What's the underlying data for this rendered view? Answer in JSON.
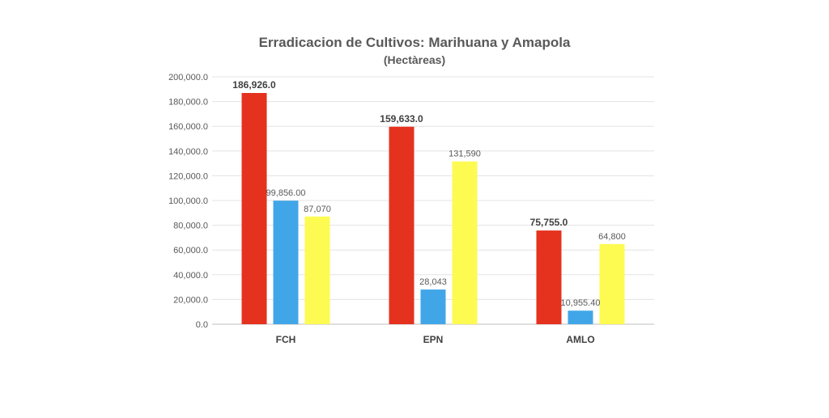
{
  "chart_data": {
    "type": "bar",
    "title": "Erradicacion de Cultivos: Marihuana y Amapola",
    "subtitle": "(Hectàreas)",
    "categories": [
      "FCH",
      "EPN",
      "AMLO"
    ],
    "ylim": [
      0,
      200000
    ],
    "ytick_step": 20000,
    "ytick_labels": [
      "0.0",
      "20,000.0",
      "40,000.0",
      "60,000.0",
      "80,000.0",
      "100,000.0",
      "120,000.0",
      "140,000.0",
      "160,000.0",
      "180,000.0",
      "200,000.0"
    ],
    "grid": true,
    "legend": "none",
    "series": [
      {
        "name": "Series 1",
        "color": "#e5321f",
        "values": [
          186926.0,
          159633.0,
          75755.0
        ],
        "labels": [
          "186,926.0",
          "159,633.0",
          "75,755.0"
        ],
        "label_bold": true
      },
      {
        "name": "Series 2",
        "color": "#41a6e8",
        "values": [
          99856.0,
          28043,
          10955.4
        ],
        "labels": [
          "99,856.00",
          "28,043",
          "10,955.40"
        ],
        "label_bold": false
      },
      {
        "name": "Series 3",
        "color": "#fdfa52",
        "values": [
          87070,
          131590,
          64800
        ],
        "labels": [
          "87,070",
          "131,590",
          "64,800"
        ],
        "label_bold": false
      }
    ]
  }
}
